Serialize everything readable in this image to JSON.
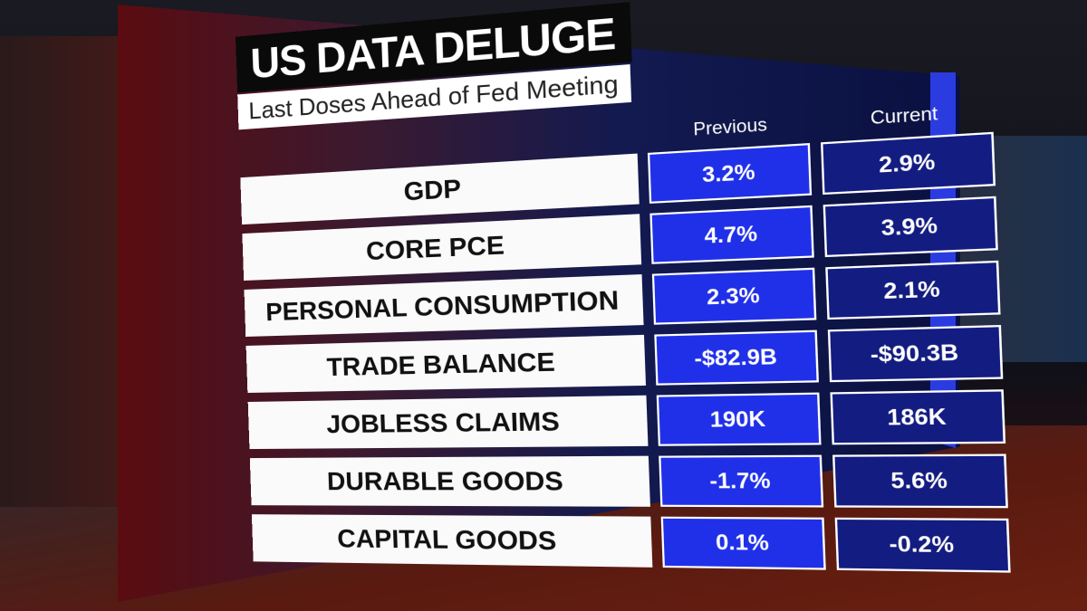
{
  "header": {
    "title": "US DATA DELUGE",
    "subtitle": "Last Doses Ahead of Fed Meeting"
  },
  "table": {
    "columns": [
      "Previous",
      "Current"
    ],
    "rows": [
      [
        "GDP",
        "3.2%",
        "2.9%"
      ],
      [
        "CORE PCE",
        "4.7%",
        "3.9%"
      ],
      [
        "PERSONAL CONSUMPTION",
        "2.3%",
        "2.1%"
      ],
      [
        "TRADE BALANCE",
        "-$82.9B",
        "-$90.3B"
      ],
      [
        "JOBLESS CLAIMS",
        "190K",
        "186K"
      ],
      [
        "DURABLE GOODS",
        "-1.7%",
        "5.6%"
      ],
      [
        "CAPITAL GOODS",
        "0.1%",
        "-0.2%"
      ]
    ]
  }
}
